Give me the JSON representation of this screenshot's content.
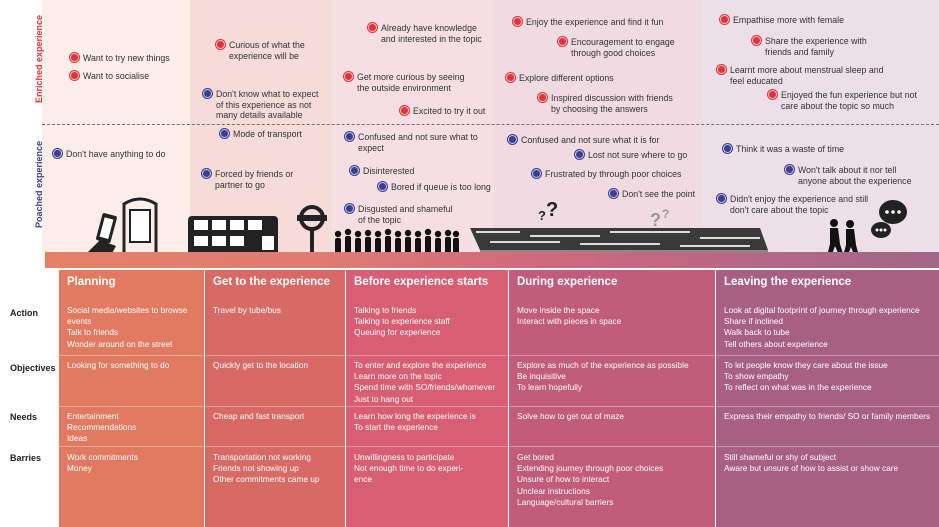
{
  "labels": {
    "enriched": "Enriched experience",
    "poached": "Poached experience"
  },
  "colors": {
    "enriched": "#e0333c",
    "poached": "#3d3d8f"
  },
  "icons": [
    "phone-hand-icon",
    "bus-stop-icon",
    "double-decker-bus-icon",
    "tube-sign-icon",
    "queue-people-icon",
    "maze-icon",
    "question-marks-icon",
    "walking-people-icon",
    "speech-bubbles-icon"
  ],
  "question_marks": [
    "?",
    "?",
    "?",
    "?"
  ],
  "enriched_notes": [
    "Want to try new things",
    "Want to socialise",
    "Curious of what the experience will be",
    "Already have knowledge and interested in the topic",
    "Get more curious by seeing the outside environment",
    "Excited to try it out",
    "Enjoy the experience and find it fun",
    "Encouragement to engage through good choices",
    "Explore different options",
    "Inspired discussion with friends by choosing the answers",
    "Empathise more with female",
    "Share the experience with friends and family",
    "Learnt more about menstrual sleep and feel educated",
    "Enjoyed the fun experience but not care about the topic so much"
  ],
  "poached_notes": [
    "Don't know what to expect of this experience as not many details available",
    "Don't have anything to do",
    "Mode of transport",
    "Forced by friends or partner to go",
    "Confused and not sure what to expect",
    "Disinterested",
    "Bored if queue is too long",
    "Disgusted and shameful of the topic",
    "Confused and not sure what it is for",
    "Lost not sure where to go",
    "Frustrated by through poor choices",
    "Don't see the point",
    "Think it was a waste of time",
    "Won't talk about it nor tell anyone about the experience",
    "Didn't enjoy the experience and still don't care about the topic"
  ],
  "row_labels": [
    "Action",
    "Objectives",
    "Needs",
    "Barries"
  ],
  "stages": [
    {
      "title": "Planning",
      "action": [
        "Social media/websites to browse",
        "events",
        "Talk to friends",
        "Wonder around on the street"
      ],
      "objectives": [
        "Looking for something to do"
      ],
      "needs": [
        "Entertainment",
        "Recommendations",
        "Ideas"
      ],
      "barriers": [
        "Work commitments",
        "Money"
      ]
    },
    {
      "title": "Get to the experience",
      "action": [
        "Travel by tube/bus"
      ],
      "objectives": [
        "Quickly get to the location"
      ],
      "needs": [
        "Cheap and fast transport"
      ],
      "barriers": [
        "Transportation not working",
        "Friends not showing up",
        "Other commitments came up"
      ]
    },
    {
      "title": "Before experience starts",
      "action": [
        "Talking to friends",
        "Talking to experience staff",
        "Queuing for experience"
      ],
      "objectives": [
        "To enter and explore the experience",
        "Learn more on the topic",
        "Spend time with SO/friends/whomever",
        "Just to hang out"
      ],
      "needs": [
        "Learn how long the experience is",
        "To start the experience"
      ],
      "barriers": [
        "Unwillingness to participate",
        "Not enough time to do experi-",
        "ence"
      ]
    },
    {
      "title": "During experience",
      "action": [
        "Move inside the space",
        "Interact with pieces in space"
      ],
      "objectives": [
        "Explore as much of the experience as possible",
        "Be inquisitive",
        "To learn hopefully"
      ],
      "needs": [
        "Solve how to get out of maze"
      ],
      "barriers": [
        "Get bored",
        "Extending journey through poor choices",
        "Unsure of how to interact",
        "Unclear instructions",
        "Language/cultural barriers"
      ]
    },
    {
      "title": "Leaving the experience",
      "action": [
        "Look at digital footprint of journey through experience",
        "Share if inclined",
        "Walk back to tube",
        "Tell others about experience"
      ],
      "objectives": [
        "To let people know they care about the issue",
        "To show empathy",
        "To reflect on what was in the experience"
      ],
      "needs": [
        "Express their empathy to friends/ SO or family members"
      ],
      "barriers": [
        "Still shameful or shy of subject",
        "Aware but unsure of how to assist or show care"
      ]
    }
  ]
}
